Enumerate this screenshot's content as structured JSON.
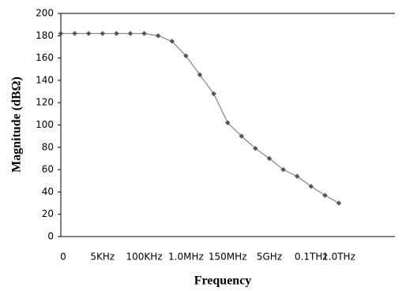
{
  "chart_data": {
    "type": "line",
    "categories": [
      "0",
      null,
      null,
      "5KHz",
      null,
      null,
      "100KHz",
      null,
      null,
      "1.0MHz",
      null,
      null,
      "150MHz",
      null,
      null,
      "5GHz",
      null,
      null,
      "0.1THz",
      null,
      "1.0THz"
    ],
    "series": [
      {
        "color": "#8c8c8c",
        "values": [
          182,
          182,
          182,
          182,
          182,
          182,
          182,
          180,
          175,
          162,
          145,
          128,
          102,
          90,
          79,
          70,
          60,
          54,
          45,
          37,
          30
        ]
      }
    ],
    "ylim": [
      0,
      200
    ],
    "yticks": [
      0,
      20,
      40,
      60,
      80,
      100,
      120,
      140,
      160,
      180,
      200
    ],
    "xlabel": "Frequency",
    "ylabel": "Magnitude  (dBΩ)"
  }
}
